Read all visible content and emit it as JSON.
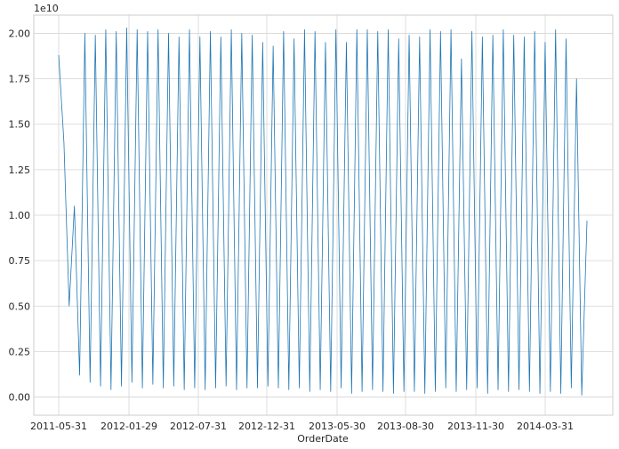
{
  "chart_data": {
    "type": "line",
    "title": "",
    "xlabel": "OrderDate",
    "ylabel": "",
    "y_offset_label": "1e10",
    "y_scale_factor": 10000000000,
    "x_tick_labels": [
      "2011-05-31",
      "2012-01-29",
      "2012-07-31",
      "2012-12-31",
      "2013-05-30",
      "2013-08-30",
      "2013-11-30",
      "2014-03-31"
    ],
    "y_tick_labels": [
      "0.00",
      "0.25",
      "0.50",
      "0.75",
      "1.00",
      "1.25",
      "1.50",
      "1.75",
      "2.00"
    ],
    "y_ticks": [
      0,
      0.25,
      0.5,
      0.75,
      1.0,
      1.25,
      1.5,
      1.75,
      2.0
    ],
    "ylim": [
      -0.1,
      2.1
    ],
    "grid": true,
    "legend": "none",
    "series_color": "#1f77b4",
    "series": [
      {
        "values": [
          1.88,
          1.4,
          0.5,
          1.05,
          0.12,
          2.0,
          0.08,
          1.99,
          0.06,
          2.02,
          0.04,
          2.01,
          0.06,
          2.03,
          0.08,
          2.02,
          0.05,
          2.01,
          0.07,
          2.02,
          0.05,
          2.0,
          0.06,
          1.98,
          0.04,
          2.02,
          0.05,
          1.98,
          0.04,
          2.01,
          0.05,
          1.98,
          0.06,
          2.02,
          0.04,
          2.0,
          0.05,
          1.99,
          0.05,
          1.95,
          0.06,
          1.93,
          0.05,
          2.01,
          0.04,
          1.97,
          0.05,
          2.02,
          0.03,
          2.01,
          0.04,
          1.95,
          0.03,
          2.02,
          0.05,
          1.95,
          0.02,
          2.02,
          0.03,
          2.02,
          0.04,
          2.01,
          0.03,
          2.02,
          0.02,
          1.97,
          0.03,
          1.99,
          0.03,
          1.98,
          0.02,
          2.02,
          0.03,
          2.01,
          0.05,
          2.02,
          0.03,
          1.86,
          0.04,
          2.01,
          0.05,
          1.98,
          0.02,
          1.99,
          0.04,
          2.02,
          0.03,
          1.99,
          0.04,
          1.98,
          0.03,
          2.01,
          0.02,
          1.95,
          0.03,
          2.02,
          0.02,
          1.97,
          0.05,
          1.75,
          0.01,
          0.97
        ]
      }
    ]
  }
}
